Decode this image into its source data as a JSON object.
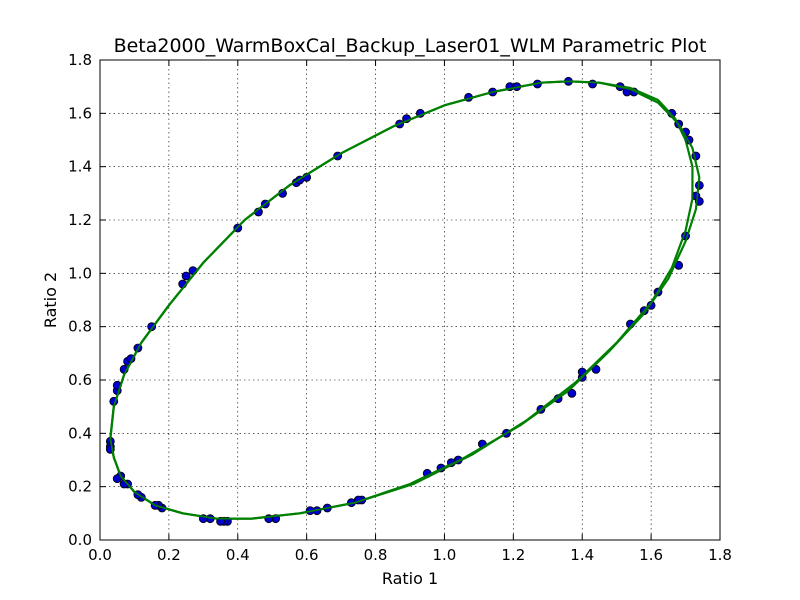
{
  "chart_data": {
    "type": "scatter",
    "title": "Beta2000_WarmBoxCal_Backup_Laser01_WLM Parametric Plot",
    "xlabel": "Ratio 1",
    "ylabel": "Ratio 2",
    "xlim": [
      0.0,
      1.8
    ],
    "ylim": [
      0.0,
      1.8
    ],
    "xticks": [
      "0.0",
      "0.2",
      "0.4",
      "0.6",
      "0.8",
      "1.0",
      "1.2",
      "1.4",
      "1.6",
      "1.8"
    ],
    "yticks": [
      "0.0",
      "0.2",
      "0.4",
      "0.6",
      "0.8",
      "1.0",
      "1.2",
      "1.4",
      "1.6",
      "1.8"
    ],
    "grid": true,
    "colors": {
      "points": "#0000cc",
      "fit": "#008000"
    },
    "series": [
      {
        "kind": "points",
        "points": [
          [
            0.03,
            0.37
          ],
          [
            0.03,
            0.35
          ],
          [
            0.04,
            0.52
          ],
          [
            0.05,
            0.56
          ],
          [
            0.05,
            0.58
          ],
          [
            0.07,
            0.64
          ],
          [
            0.08,
            0.67
          ],
          [
            0.09,
            0.68
          ],
          [
            0.11,
            0.72
          ],
          [
            0.15,
            0.8
          ],
          [
            0.24,
            0.96
          ],
          [
            0.25,
            0.99
          ],
          [
            0.27,
            1.01
          ],
          [
            0.4,
            1.17
          ],
          [
            0.46,
            1.23
          ],
          [
            0.48,
            1.26
          ],
          [
            0.53,
            1.3
          ],
          [
            0.57,
            1.34
          ],
          [
            0.58,
            1.35
          ],
          [
            0.6,
            1.36
          ],
          [
            0.69,
            1.44
          ],
          [
            0.87,
            1.56
          ],
          [
            0.89,
            1.58
          ],
          [
            0.93,
            1.6
          ],
          [
            1.07,
            1.66
          ],
          [
            1.14,
            1.68
          ],
          [
            1.19,
            1.7
          ],
          [
            1.21,
            1.7
          ],
          [
            1.27,
            1.71
          ],
          [
            1.36,
            1.72
          ],
          [
            1.43,
            1.71
          ],
          [
            1.51,
            1.7
          ],
          [
            1.53,
            1.68
          ],
          [
            1.55,
            1.68
          ],
          [
            1.66,
            1.6
          ],
          [
            1.68,
            1.56
          ],
          [
            1.7,
            1.53
          ],
          [
            1.71,
            1.5
          ],
          [
            1.73,
            1.44
          ],
          [
            1.74,
            1.33
          ],
          [
            1.73,
            1.29
          ],
          [
            1.74,
            1.27
          ],
          [
            1.7,
            1.14
          ],
          [
            1.68,
            1.03
          ],
          [
            1.62,
            0.93
          ],
          [
            1.6,
            0.88
          ],
          [
            1.58,
            0.86
          ],
          [
            1.54,
            0.81
          ],
          [
            1.44,
            0.64
          ],
          [
            1.4,
            0.61
          ],
          [
            1.4,
            0.63
          ],
          [
            1.37,
            0.55
          ],
          [
            1.33,
            0.53
          ],
          [
            1.28,
            0.49
          ],
          [
            1.18,
            0.4
          ],
          [
            1.11,
            0.36
          ],
          [
            1.04,
            0.3
          ],
          [
            1.02,
            0.29
          ],
          [
            0.99,
            0.27
          ],
          [
            0.95,
            0.25
          ],
          [
            0.76,
            0.15
          ],
          [
            0.75,
            0.15
          ],
          [
            0.73,
            0.14
          ],
          [
            0.66,
            0.12
          ],
          [
            0.63,
            0.11
          ],
          [
            0.61,
            0.11
          ],
          [
            0.51,
            0.08
          ],
          [
            0.49,
            0.08
          ],
          [
            0.37,
            0.07
          ],
          [
            0.36,
            0.07
          ],
          [
            0.35,
            0.07
          ],
          [
            0.32,
            0.08
          ],
          [
            0.3,
            0.08
          ],
          [
            0.18,
            0.12
          ],
          [
            0.17,
            0.13
          ],
          [
            0.16,
            0.13
          ],
          [
            0.12,
            0.16
          ],
          [
            0.11,
            0.17
          ],
          [
            0.08,
            0.21
          ],
          [
            0.07,
            0.21
          ],
          [
            0.06,
            0.24
          ],
          [
            0.05,
            0.23
          ],
          [
            0.03,
            0.34
          ]
        ]
      },
      {
        "kind": "fit",
        "points": [
          [
            0.03,
            0.38
          ],
          [
            0.04,
            0.5
          ],
          [
            0.07,
            0.62
          ],
          [
            0.12,
            0.74
          ],
          [
            0.2,
            0.88
          ],
          [
            0.3,
            1.04
          ],
          [
            0.42,
            1.2
          ],
          [
            0.55,
            1.33
          ],
          [
            0.7,
            1.45
          ],
          [
            0.85,
            1.55
          ],
          [
            1.0,
            1.63
          ],
          [
            1.14,
            1.68
          ],
          [
            1.28,
            1.715
          ],
          [
            1.36,
            1.72
          ],
          [
            1.45,
            1.715
          ],
          [
            1.54,
            1.69
          ],
          [
            1.62,
            1.64
          ],
          [
            1.68,
            1.56
          ],
          [
            1.72,
            1.47
          ],
          [
            1.74,
            1.36
          ],
          [
            1.73,
            1.24
          ],
          [
            1.7,
            1.12
          ],
          [
            1.65,
            0.98
          ],
          [
            1.58,
            0.85
          ],
          [
            1.48,
            0.71
          ],
          [
            1.36,
            0.56
          ],
          [
            1.22,
            0.43
          ],
          [
            1.06,
            0.31
          ],
          [
            0.9,
            0.21
          ],
          [
            0.74,
            0.14
          ],
          [
            0.58,
            0.1
          ],
          [
            0.44,
            0.08
          ],
          [
            0.34,
            0.08
          ],
          [
            0.24,
            0.1
          ],
          [
            0.16,
            0.13
          ],
          [
            0.1,
            0.18
          ],
          [
            0.06,
            0.24
          ],
          [
            0.04,
            0.31
          ],
          [
            0.03,
            0.38
          ]
        ]
      },
      {
        "kind": "fit",
        "points": [
          [
            0.03,
            0.38
          ],
          [
            0.04,
            0.5
          ],
          [
            0.07,
            0.62
          ],
          [
            0.12,
            0.74
          ],
          [
            0.2,
            0.88
          ],
          [
            0.3,
            1.04
          ],
          [
            0.42,
            1.2
          ],
          [
            0.55,
            1.33
          ],
          [
            0.7,
            1.45
          ],
          [
            0.85,
            1.55
          ],
          [
            1.0,
            1.63
          ],
          [
            1.14,
            1.68
          ],
          [
            1.28,
            1.715
          ],
          [
            1.36,
            1.72
          ],
          [
            1.45,
            1.715
          ],
          [
            1.54,
            1.695
          ],
          [
            1.62,
            1.65
          ],
          [
            1.67,
            1.58
          ],
          [
            1.7,
            1.5
          ],
          [
            1.72,
            1.4
          ],
          [
            1.72,
            1.28
          ],
          [
            1.7,
            1.16
          ],
          [
            1.66,
            1.02
          ],
          [
            1.6,
            0.89
          ],
          [
            1.5,
            0.74
          ],
          [
            1.38,
            0.59
          ],
          [
            1.24,
            0.45
          ],
          [
            1.08,
            0.32
          ],
          [
            0.91,
            0.21
          ],
          [
            0.74,
            0.14
          ],
          [
            0.58,
            0.1
          ],
          [
            0.44,
            0.08
          ],
          [
            0.34,
            0.08
          ],
          [
            0.24,
            0.1
          ],
          [
            0.16,
            0.13
          ],
          [
            0.1,
            0.18
          ],
          [
            0.06,
            0.24
          ],
          [
            0.04,
            0.31
          ],
          [
            0.03,
            0.38
          ]
        ]
      }
    ]
  }
}
